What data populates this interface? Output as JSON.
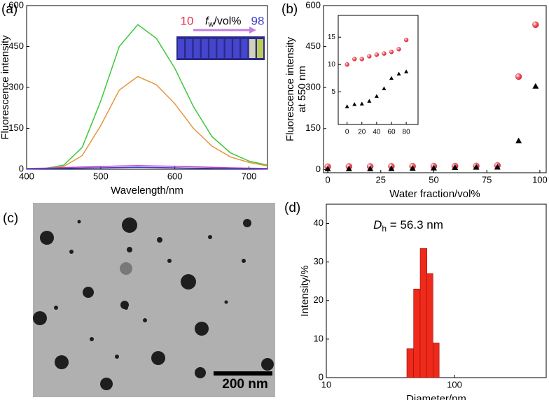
{
  "chart_data": [
    {
      "type": "line",
      "label": "(a)",
      "xlabel": "Wavelength/nm",
      "ylabel": "Fluorescence intensity",
      "x": [
        400,
        425,
        450,
        475,
        500,
        525,
        550,
        575,
        600,
        625,
        650,
        675,
        700,
        725
      ],
      "xlim": [
        400,
        725
      ],
      "xticks": [
        400,
        500,
        600,
        700
      ],
      "ylim": [
        0,
        600
      ],
      "yticks": [
        0,
        150,
        300,
        450,
        600
      ],
      "series": [
        {
          "color": "#3cc83c",
          "values": [
            2,
            3,
            15,
            80,
            250,
            450,
            530,
            480,
            370,
            230,
            120,
            60,
            30,
            15
          ]
        },
        {
          "color": "#e8963c",
          "values": [
            2,
            3,
            10,
            50,
            160,
            290,
            340,
            310,
            240,
            150,
            85,
            45,
            25,
            12
          ]
        },
        {
          "color": "#c040c0",
          "values": [
            3,
            4,
            6,
            8,
            10,
            12,
            13,
            12,
            11,
            9,
            7,
            5,
            4,
            3
          ]
        },
        {
          "color": "#3c3cd0",
          "values": [
            1,
            2,
            3,
            4,
            5,
            6,
            7,
            6,
            5,
            4,
            3,
            2,
            2,
            1
          ]
        }
      ],
      "inset_start": "10",
      "inset_symbol": "f",
      "inset_subscript": "w",
      "inset_unit": "/vol%",
      "inset_end": "98"
    },
    {
      "type": "scatter",
      "label": "(b)",
      "xlabel": "Water fraction/vol%",
      "ylabel": [
        "Fluorescence intensity",
        "at 550 nm"
      ],
      "x": [
        0,
        10,
        20,
        30,
        40,
        50,
        60,
        70,
        80,
        90,
        98
      ],
      "xlim": [
        -2,
        103
      ],
      "xticks": [
        0,
        25,
        50,
        75,
        100
      ],
      "ylim": [
        -12,
        600
      ],
      "yticks": [
        0,
        150,
        300,
        450,
        600
      ],
      "series": [
        {
          "marker": "circle",
          "color": "#e8404a",
          "values": [
            10,
            11,
            11,
            11.5,
            11.8,
            12,
            12.3,
            12.8,
            14.5,
            340,
            530
          ]
        },
        {
          "marker": "triangle",
          "color": "#000000",
          "values": [
            2.3,
            2.7,
            2.8,
            3.3,
            4.2,
            5.6,
            7.5,
            8.3,
            8.7,
            105,
            305
          ]
        }
      ],
      "inset": {
        "x": [
          0,
          10,
          20,
          30,
          40,
          50,
          60,
          70,
          80
        ],
        "xlim": [
          -12,
          96
        ],
        "xticks": [
          0,
          20,
          40,
          60,
          80
        ],
        "ylim": [
          -1,
          19
        ],
        "yticks": [
          5,
          10,
          15
        ],
        "series": [
          {
            "marker": "circle",
            "color": "#e8404a",
            "values": [
              10,
              11,
              11,
              11.5,
              11.8,
              12,
              12.3,
              12.8,
              14.5
            ]
          },
          {
            "marker": "triangle",
            "color": "#000000",
            "values": [
              2.3,
              2.7,
              2.8,
              3.3,
              4.2,
              5.6,
              7.5,
              8.3,
              8.7
            ]
          }
        ]
      }
    },
    {
      "type": "histogram",
      "label": "(d)",
      "xlabel": "Diameter/nm",
      "ylabel": "Intensity/%",
      "xscale": "log",
      "bins": [
        42.5,
        48,
        54,
        61,
        68,
        76
      ],
      "values": [
        7.5,
        23,
        33.5,
        27,
        9
      ],
      "color": "#f02a1a",
      "xlim": [
        10,
        520
      ],
      "xticks": [
        10,
        100
      ],
      "ylim": [
        0,
        45
      ],
      "yticks": [
        0,
        10,
        20,
        30,
        40
      ],
      "annotation": {
        "symbol": "D",
        "subscript": "h",
        "text": " = 56.3 nm"
      }
    }
  ],
  "image": {
    "label": "(c)",
    "scale_bar": "200 nm"
  }
}
